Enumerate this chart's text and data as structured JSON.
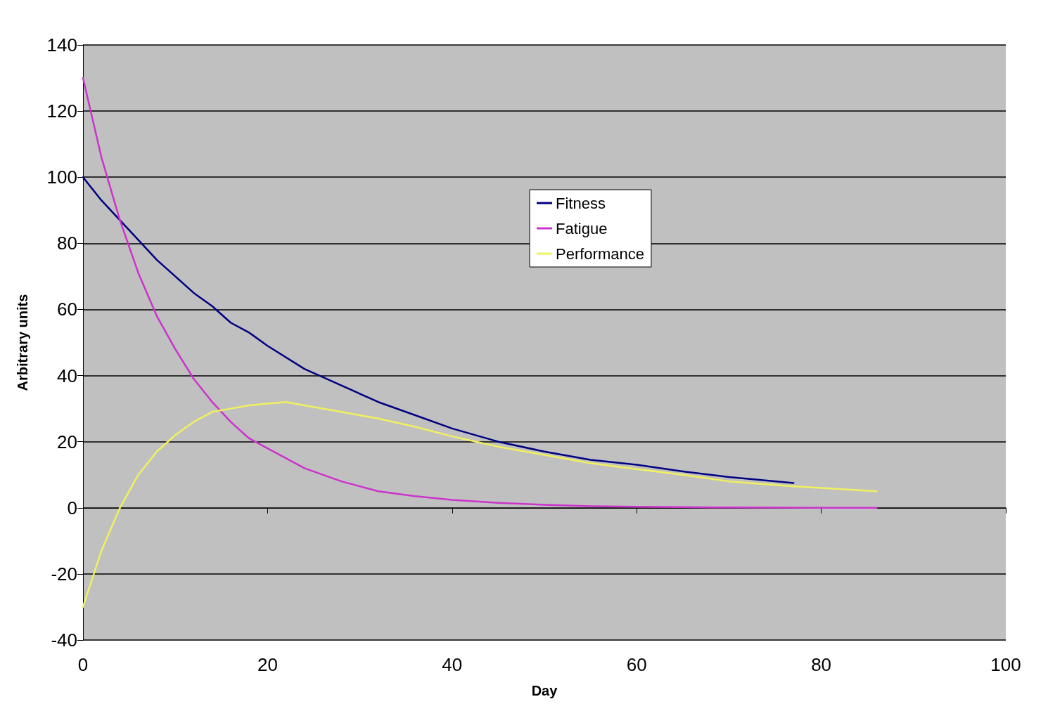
{
  "chart_data": {
    "type": "line",
    "xlabel": "Day",
    "ylabel": "Arbitrary units",
    "xlim": [
      0,
      100
    ],
    "xticks": [
      0,
      20,
      40,
      60,
      80,
      100
    ],
    "ylim": [
      -40,
      140
    ],
    "yticks": [
      -40,
      -20,
      0,
      20,
      40,
      60,
      80,
      100,
      120,
      140
    ],
    "grid": "y",
    "legend": "top",
    "marker": "none",
    "line_style": "solid",
    "series": [
      {
        "name": "Fitness",
        "color": "#000080",
        "x": [
          0,
          2,
          4,
          6,
          8,
          10,
          12,
          14,
          16,
          18,
          20,
          24,
          28,
          32,
          36,
          40,
          45,
          50,
          55,
          60,
          65,
          70,
          77
        ],
        "values": [
          100,
          93,
          87,
          81,
          75,
          70,
          65,
          61,
          56,
          53,
          49,
          42,
          37,
          32,
          28,
          24,
          20,
          17,
          14.5,
          13,
          11,
          9.3,
          7.5
        ]
      },
      {
        "name": "Fatigue",
        "color": "#cc33cc",
        "x": [
          0,
          2,
          4,
          6,
          8,
          10,
          12,
          14,
          16,
          18,
          20,
          24,
          28,
          32,
          36,
          40,
          45,
          50,
          55,
          60,
          70,
          80,
          86
        ],
        "values": [
          130,
          106,
          87,
          71,
          58,
          48,
          39,
          32,
          26,
          21,
          18,
          12,
          8,
          5,
          3.5,
          2.4,
          1.5,
          0.9,
          0.5,
          0.3,
          0.1,
          0,
          0
        ]
      },
      {
        "name": "Performance",
        "color": "#f0f060",
        "x": [
          0,
          2,
          4,
          6,
          8,
          10,
          12,
          14,
          16,
          18,
          20,
          22,
          24,
          28,
          32,
          36,
          40,
          45,
          50,
          55,
          60,
          65,
          70,
          77,
          80,
          86
        ],
        "values": [
          -30,
          -13,
          0,
          10,
          17,
          22,
          26,
          29,
          30,
          31,
          31.5,
          32,
          31,
          29,
          27,
          24.5,
          21.6,
          18.5,
          16,
          13.5,
          11.7,
          10,
          8,
          6.5,
          6,
          5
        ]
      }
    ]
  }
}
